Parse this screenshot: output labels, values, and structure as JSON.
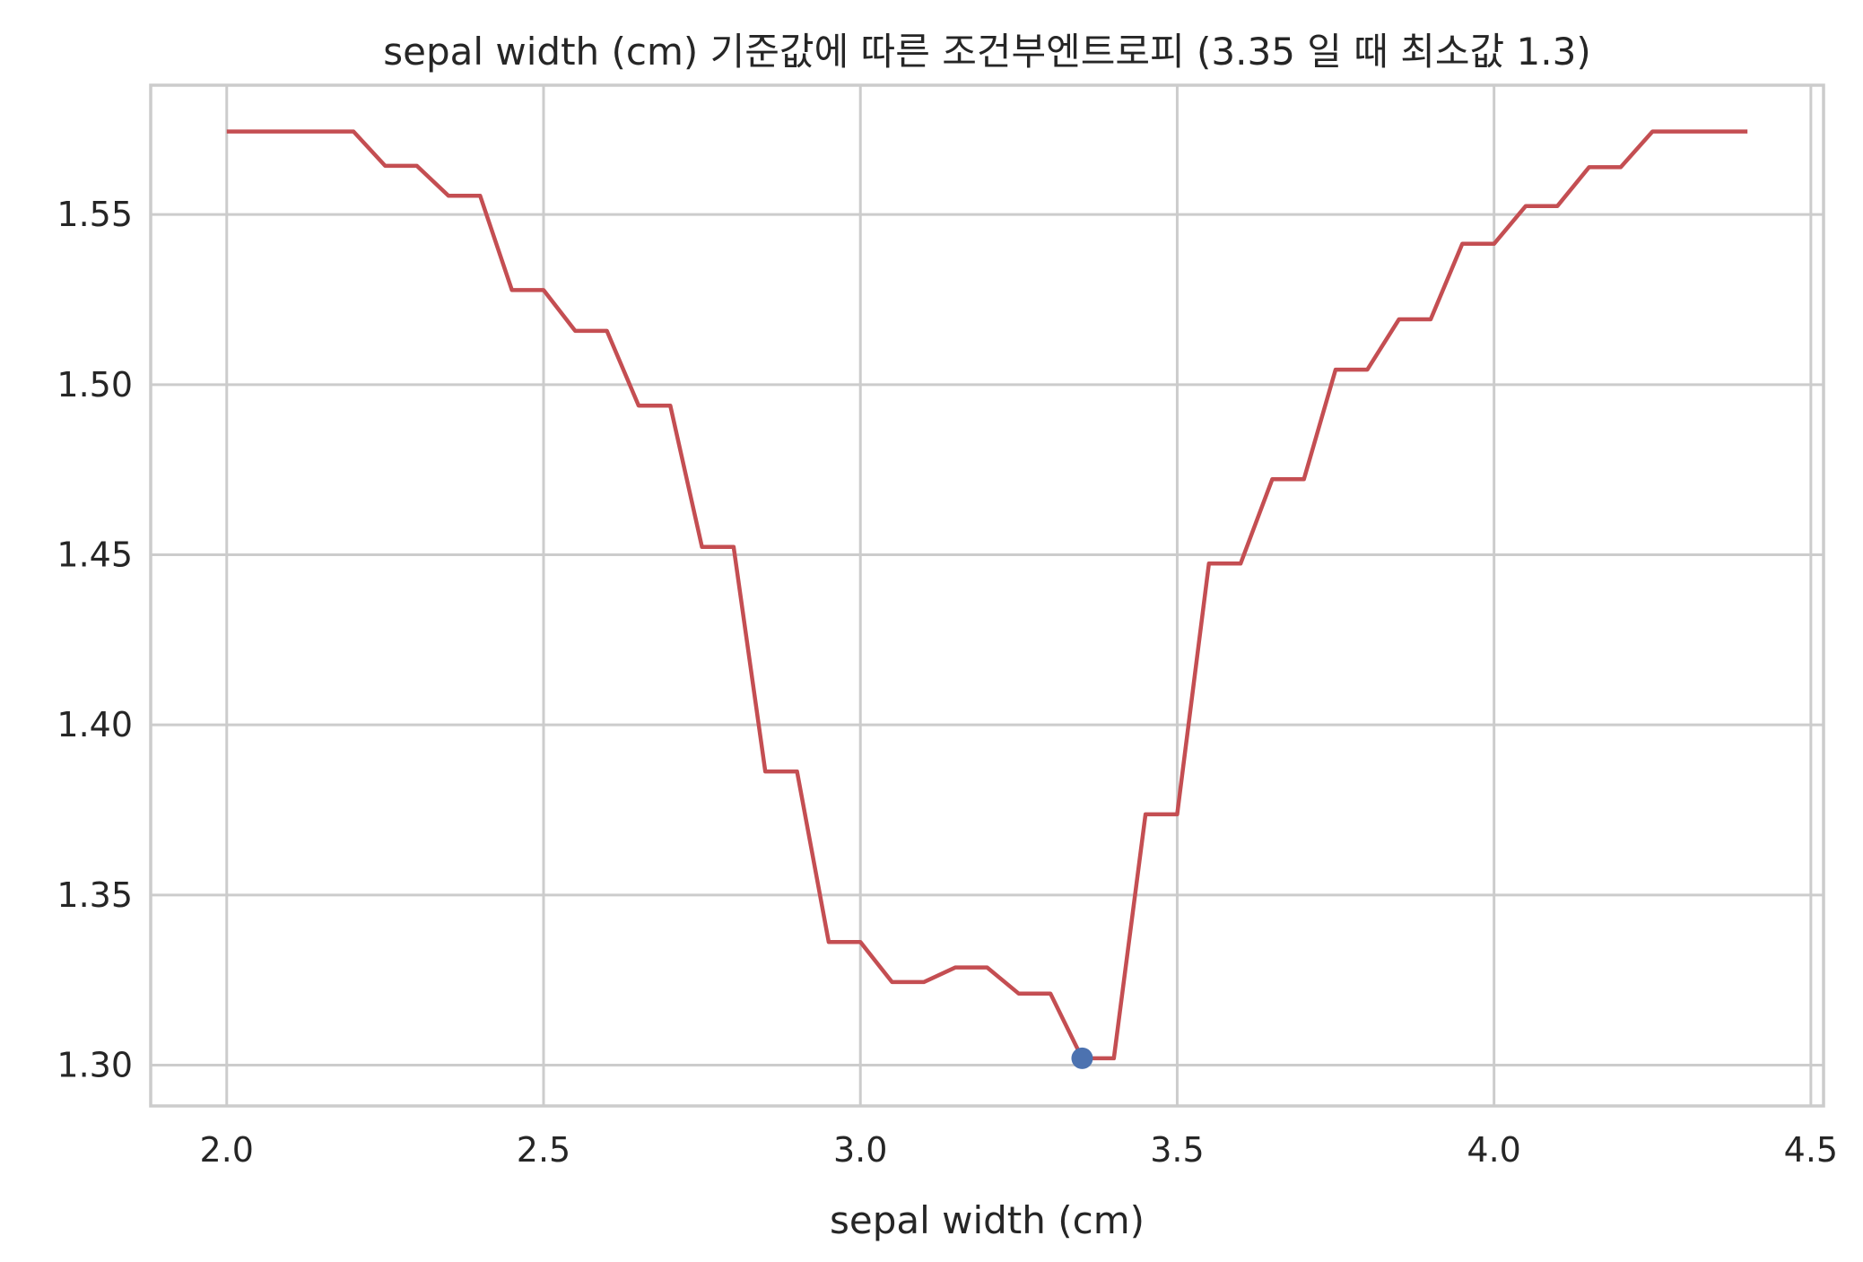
{
  "chart_data": {
    "type": "line",
    "title": "sepal width (cm) 기준값에 따른 조건부엔트로피 (3.35 일 때 최소값 1.3)",
    "xlabel": "sepal width (cm)",
    "ylabel": "",
    "xlim": [
      1.88,
      4.52
    ],
    "ylim": [
      1.288,
      1.588
    ],
    "xticks": [
      2.0,
      2.5,
      3.0,
      3.5,
      4.0,
      4.5
    ],
    "xtick_labels": [
      "2.0",
      "2.5",
      "3.0",
      "3.5",
      "4.0",
      "4.5"
    ],
    "yticks": [
      1.3,
      1.35,
      1.4,
      1.45,
      1.5,
      1.55
    ],
    "ytick_labels": [
      "1.30",
      "1.35",
      "1.40",
      "1.45",
      "1.50",
      "1.55"
    ],
    "grid": true,
    "series": [
      {
        "color": "#c44e52",
        "x": [
          2.0,
          2.05,
          2.1,
          2.15,
          2.2,
          2.25,
          2.3,
          2.35,
          2.4,
          2.45,
          2.5,
          2.55,
          2.6,
          2.65,
          2.7,
          2.75,
          2.8,
          2.85,
          2.9,
          2.95,
          3.0,
          3.05,
          3.1,
          3.15,
          3.2,
          3.25,
          3.3,
          3.35,
          3.4,
          3.45,
          3.5,
          3.55,
          3.6,
          3.65,
          3.7,
          3.75,
          3.8,
          3.85,
          3.9,
          3.95,
          4.0,
          4.05,
          4.1,
          4.15,
          4.2,
          4.25,
          4.3,
          4.35,
          4.4
        ],
        "y": [
          1.5744,
          1.5744,
          1.5744,
          1.5744,
          1.5744,
          1.5643,
          1.5643,
          1.5555,
          1.5555,
          1.5278,
          1.5278,
          1.5158,
          1.5158,
          1.4938,
          1.4938,
          1.4523,
          1.4523,
          1.3863,
          1.3863,
          1.3362,
          1.3362,
          1.3244,
          1.3244,
          1.3287,
          1.3287,
          1.321,
          1.321,
          1.302,
          1.302,
          1.3737,
          1.3737,
          1.4474,
          1.4474,
          1.4722,
          1.4722,
          1.5044,
          1.5044,
          1.5192,
          1.5192,
          1.5414,
          1.5414,
          1.5525,
          1.5525,
          1.5639,
          1.5639,
          1.5744,
          1.5744,
          1.5744,
          1.5744
        ]
      }
    ],
    "marker": {
      "x": 3.35,
      "y": 1.302,
      "color": "#4c72b0"
    }
  }
}
